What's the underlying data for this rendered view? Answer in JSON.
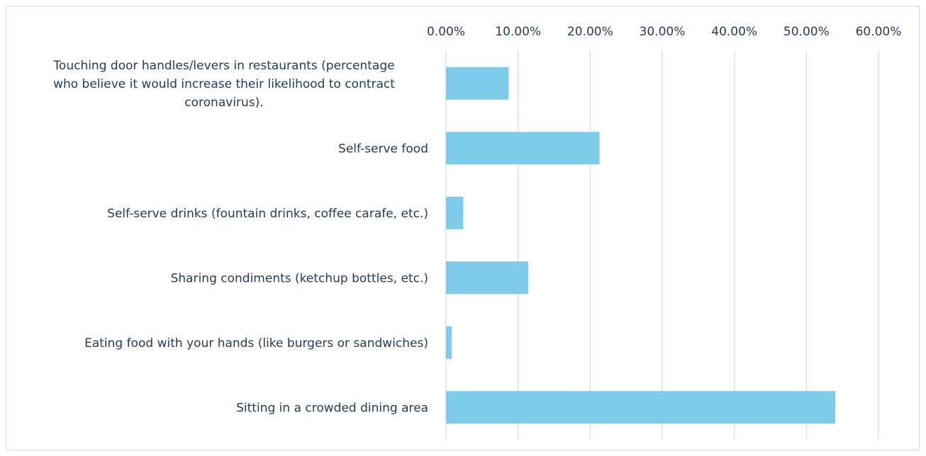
{
  "chart_data": {
    "type": "bar",
    "orientation": "horizontal",
    "title": "",
    "xlabel": "",
    "ylabel": "",
    "x_axis_position": "top",
    "xlim": [
      0,
      0.6
    ],
    "x_ticks": [
      0,
      0.1,
      0.2,
      0.3,
      0.4,
      0.5,
      0.6
    ],
    "x_tick_labels": [
      "0.00%",
      "10.00%",
      "20.00%",
      "30.00%",
      "40.00%",
      "50.00%",
      "60.00%"
    ],
    "grid": true,
    "legend": "none",
    "bar_color": "#7ecbea",
    "categories": [
      "Touching door handles/levers in restaurants (percentage who believe it would increase their likelihood to contract coronavirus).",
      "Self-serve food",
      "Self-serve drinks (fountain drinks, coffee carafe, etc.)",
      "Sharing condiments (ketchup bottles, etc.)",
      "Eating food with your hands (like burgers or sandwiches)",
      "Sitting in a crowded dining area"
    ],
    "category_label_lines": [
      [
        "Touching door handles/levers in restaurants (percentage",
        "who believe it would increase their likelihood to contract",
        "coronavirus)."
      ],
      [
        "Self-serve food"
      ],
      [
        "Self-serve drinks (fountain drinks, coffee carafe, etc.)"
      ],
      [
        "Sharing condiments (ketchup bottles, etc.)"
      ],
      [
        "Eating food with your hands (like burgers or sandwiches)"
      ],
      [
        "Sitting in a crowded dining area"
      ]
    ],
    "values": [
      0.087,
      0.213,
      0.024,
      0.114,
      0.008,
      0.54
    ]
  }
}
